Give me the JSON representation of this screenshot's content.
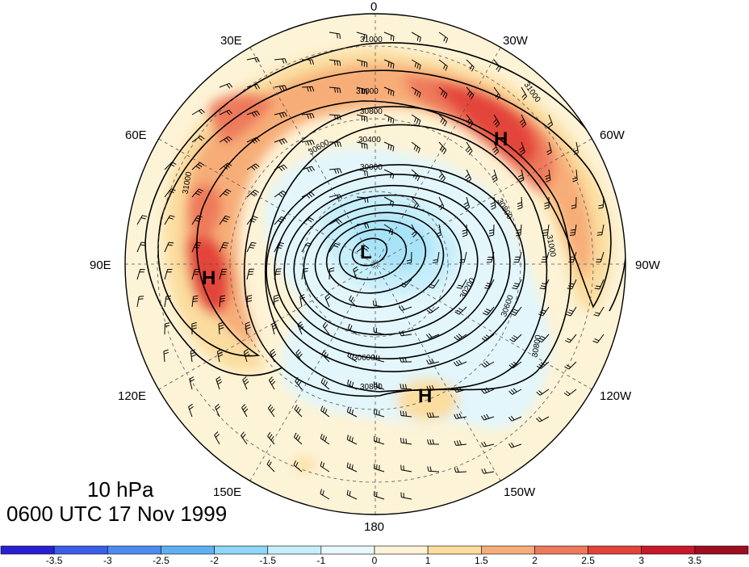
{
  "map": {
    "projection": "north polar stereographic",
    "level_label": "10 hPa",
    "time_label": "0600 UTC 17 Nov 1999",
    "longitude_labels": {
      "deg0": "0",
      "w30": "30W",
      "w60": "60W",
      "w90": "90W",
      "w120": "120W",
      "w150": "150W",
      "deg180": "180",
      "e150": "150E",
      "e120": "120E",
      "e90": "90E",
      "e60": "60E",
      "e30": "30E"
    },
    "pressure_centers": [
      {
        "symbol": "H",
        "region": "north-atlantic"
      },
      {
        "symbol": "H",
        "region": "central-asia"
      },
      {
        "symbol": "L",
        "region": "pole"
      },
      {
        "symbol": "H",
        "region": "north-pacific"
      }
    ],
    "contour_labels": [
      "31000",
      "31000",
      "30800",
      "30400",
      "30000",
      "31000",
      "30800",
      "31000",
      "31000",
      "30600",
      "30800",
      "30600",
      "30200",
      "30600",
      "30800"
    ],
    "contour_interval": 200,
    "contour_units": "gpm (geopotential height)",
    "shading": "standardized anomaly",
    "barbs": "wind barbs overlaid"
  },
  "colorbar": {
    "ticks": [
      "-3.5",
      "-3",
      "-2.5",
      "-2",
      "-1.5",
      "-1",
      "0",
      "1",
      "1.5",
      "2",
      "2.5",
      "3",
      "3.5"
    ],
    "colors": [
      "#2a1fd0",
      "#3b5ee8",
      "#4d8cef",
      "#5fb0f2",
      "#8fd6f8",
      "#c6eefb",
      "#e8f8fc",
      "#fdf3d6",
      "#fbdd9f",
      "#f7ad78",
      "#ee7a5b",
      "#e3443a",
      "#c8182c",
      "#9c0e20"
    ]
  }
}
